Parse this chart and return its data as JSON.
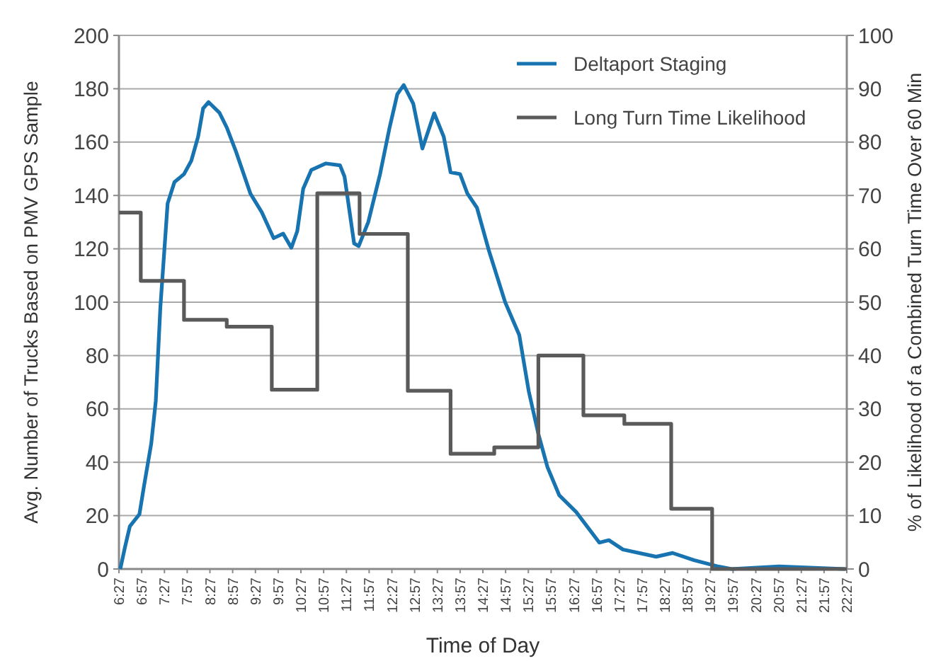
{
  "chart_data": {
    "type": "line",
    "xlabel": "Time of Day",
    "ylabel": "Avg. Number of Trucks Based on PMV GPS Sample",
    "y2label": "% of Likelihood of a Combined Turn Time Over 60 Min",
    "xlim": [
      6.45,
      22.45
    ],
    "xticks": [
      {
        "value": 6.45,
        "label": "6:27"
      },
      {
        "value": 6.95,
        "label": "6:57"
      },
      {
        "value": 7.45,
        "label": "7:27"
      },
      {
        "value": 7.95,
        "label": "7:57"
      },
      {
        "value": 8.45,
        "label": "8:27"
      },
      {
        "value": 8.95,
        "label": "8:57"
      },
      {
        "value": 9.45,
        "label": "9:27"
      },
      {
        "value": 9.95,
        "label": "9:57"
      },
      {
        "value": 10.45,
        "label": "10:27"
      },
      {
        "value": 10.95,
        "label": "10:57"
      },
      {
        "value": 11.45,
        "label": "11:27"
      },
      {
        "value": 11.95,
        "label": "11:57"
      },
      {
        "value": 12.45,
        "label": "12:27"
      },
      {
        "value": 12.95,
        "label": "12:57"
      },
      {
        "value": 13.45,
        "label": "13:27"
      },
      {
        "value": 13.95,
        "label": "13:57"
      },
      {
        "value": 14.45,
        "label": "14:27"
      },
      {
        "value": 14.95,
        "label": "14:57"
      },
      {
        "value": 15.45,
        "label": "15:27"
      },
      {
        "value": 15.95,
        "label": "15:57"
      },
      {
        "value": 16.45,
        "label": "16:27"
      },
      {
        "value": 16.95,
        "label": "16:57"
      },
      {
        "value": 17.45,
        "label": "17:27"
      },
      {
        "value": 17.95,
        "label": "17:57"
      },
      {
        "value": 18.45,
        "label": "18:27"
      },
      {
        "value": 18.95,
        "label": "18:57"
      },
      {
        "value": 19.45,
        "label": "19:27"
      },
      {
        "value": 19.95,
        "label": "19:57"
      },
      {
        "value": 20.45,
        "label": "20:27"
      },
      {
        "value": 20.95,
        "label": "20:57"
      },
      {
        "value": 21.45,
        "label": "21:27"
      },
      {
        "value": 21.95,
        "label": "21:57"
      },
      {
        "value": 22.45,
        "label": "22:27"
      }
    ],
    "ylim": [
      0,
      200
    ],
    "yticks": [
      0,
      20,
      40,
      60,
      80,
      100,
      120,
      140,
      160,
      180,
      200
    ],
    "y2lim": [
      0,
      100
    ],
    "y2ticks": [
      0,
      10,
      20,
      30,
      40,
      50,
      60,
      70,
      80,
      90,
      100
    ],
    "grid": "y",
    "legend": "top right",
    "series": [
      {
        "name": "Deltaport Staging",
        "color": "#1874b0",
        "x": [
          6.48,
          6.58,
          6.69,
          6.9,
          7.0,
          7.16,
          7.26,
          7.36,
          7.52,
          7.67,
          7.88,
          8.04,
          8.19,
          8.3,
          8.42,
          8.66,
          8.82,
          9.02,
          9.34,
          9.59,
          9.85,
          10.06,
          10.24,
          10.37,
          10.5,
          10.68,
          11.0,
          11.31,
          11.41,
          11.62,
          11.72,
          11.93,
          12.19,
          12.4,
          12.57,
          12.71,
          12.92,
          13.12,
          13.38,
          13.59,
          13.74,
          13.95,
          14.11,
          14.32,
          14.58,
          14.94,
          15.25,
          15.46,
          15.67,
          15.87,
          16.13,
          16.5,
          17.01,
          17.22,
          17.53,
          18.26,
          18.62,
          19.09,
          19.61,
          19.92,
          20.96,
          22.41
        ],
        "values": [
          0,
          8,
          16,
          20.5,
          31,
          47,
          63,
          98,
          137,
          145,
          148,
          153,
          162,
          172.6,
          175,
          171,
          165.5,
          156.6,
          140.7,
          133.7,
          124,
          125.7,
          120.4,
          126.6,
          142.5,
          149.6,
          152,
          151.3,
          147,
          122,
          121,
          130,
          148,
          165.5,
          178,
          181.4,
          174.4,
          157.6,
          170.8,
          162,
          148.7,
          148,
          140.7,
          135.4,
          119.5,
          100,
          87.7,
          66.5,
          50.6,
          38.2,
          27.6,
          21.4,
          9.9,
          10.8,
          7.3,
          4.6,
          6,
          3.3,
          1,
          0,
          1,
          0
        ]
      },
      {
        "name": "Long Turn Time Likelihood",
        "type": "step",
        "axis": "y2",
        "color": "#5a5a5a",
        "x": [
          6.45,
          6.93,
          7.88,
          8.82,
          9.81,
          10.81,
          11.74,
          12.8,
          13.74,
          14.7,
          15.67,
          16.66,
          17.56,
          18.59,
          19.49,
          22.45
        ],
        "values": [
          66.8,
          54,
          46.7,
          45.4,
          33.6,
          70.4,
          62.8,
          33.4,
          21.6,
          22.8,
          40,
          28.8,
          27.2,
          11.3,
          0,
          0
        ]
      }
    ]
  }
}
